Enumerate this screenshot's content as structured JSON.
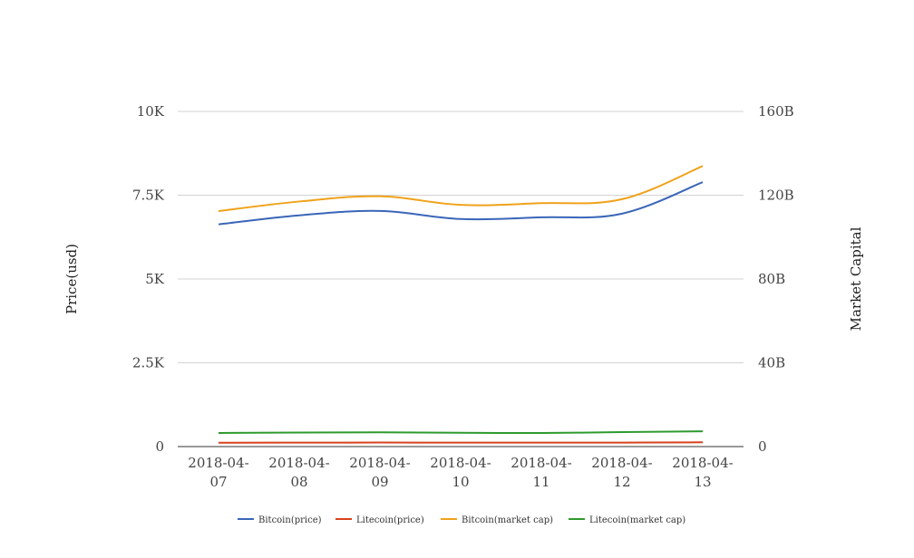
{
  "chart_data": {
    "type": "line",
    "categories": [
      [
        "2018-04-",
        "07"
      ],
      [
        "2018-04-",
        "08"
      ],
      [
        "2018-04-",
        "09"
      ],
      [
        "2018-04-",
        "10"
      ],
      [
        "2018-04-",
        "11"
      ],
      [
        "2018-04-",
        "12"
      ],
      [
        "2018-04-",
        "13"
      ]
    ],
    "y_left": {
      "label": "Price(usd)",
      "range": [
        0,
        10000
      ],
      "ticks": [
        0,
        2500,
        5000,
        7500,
        10000
      ],
      "tick_labels": [
        "0",
        "2.5K",
        "5K",
        "7.5K",
        "10K"
      ]
    },
    "y_right": {
      "label": "Market Capital",
      "range": [
        0,
        160000000000
      ],
      "ticks": [
        0,
        40000000000,
        80000000000,
        120000000000,
        160000000000
      ],
      "tick_labels": [
        "0",
        "40B",
        "80B",
        "120B",
        "160B"
      ]
    },
    "series": [
      {
        "name": "Bitcoin(price)",
        "axis": "left",
        "color": "#3a66b8",
        "values": [
          6630,
          6900,
          7030,
          6790,
          6840,
          6950,
          7890
        ]
      },
      {
        "name": "Litecoin(price)",
        "axis": "left",
        "color": "#d9411e",
        "values": [
          116,
          119,
          120,
          118,
          117,
          118,
          128
        ]
      },
      {
        "name": "Bitcoin(market cap)",
        "axis": "right",
        "color": "#f0a21b",
        "values": [
          112400000000,
          117000000000,
          119500000000,
          115400000000,
          116200000000,
          118100000000,
          133900000000
        ]
      },
      {
        "name": "Litecoin(market cap)",
        "axis": "right",
        "color": "#2e9a2e",
        "values": [
          6500000000,
          6700000000,
          6800000000,
          6600000000,
          6500000000,
          6900000000,
          7300000000
        ]
      }
    ],
    "grid": true,
    "legend_position": "bottom"
  }
}
